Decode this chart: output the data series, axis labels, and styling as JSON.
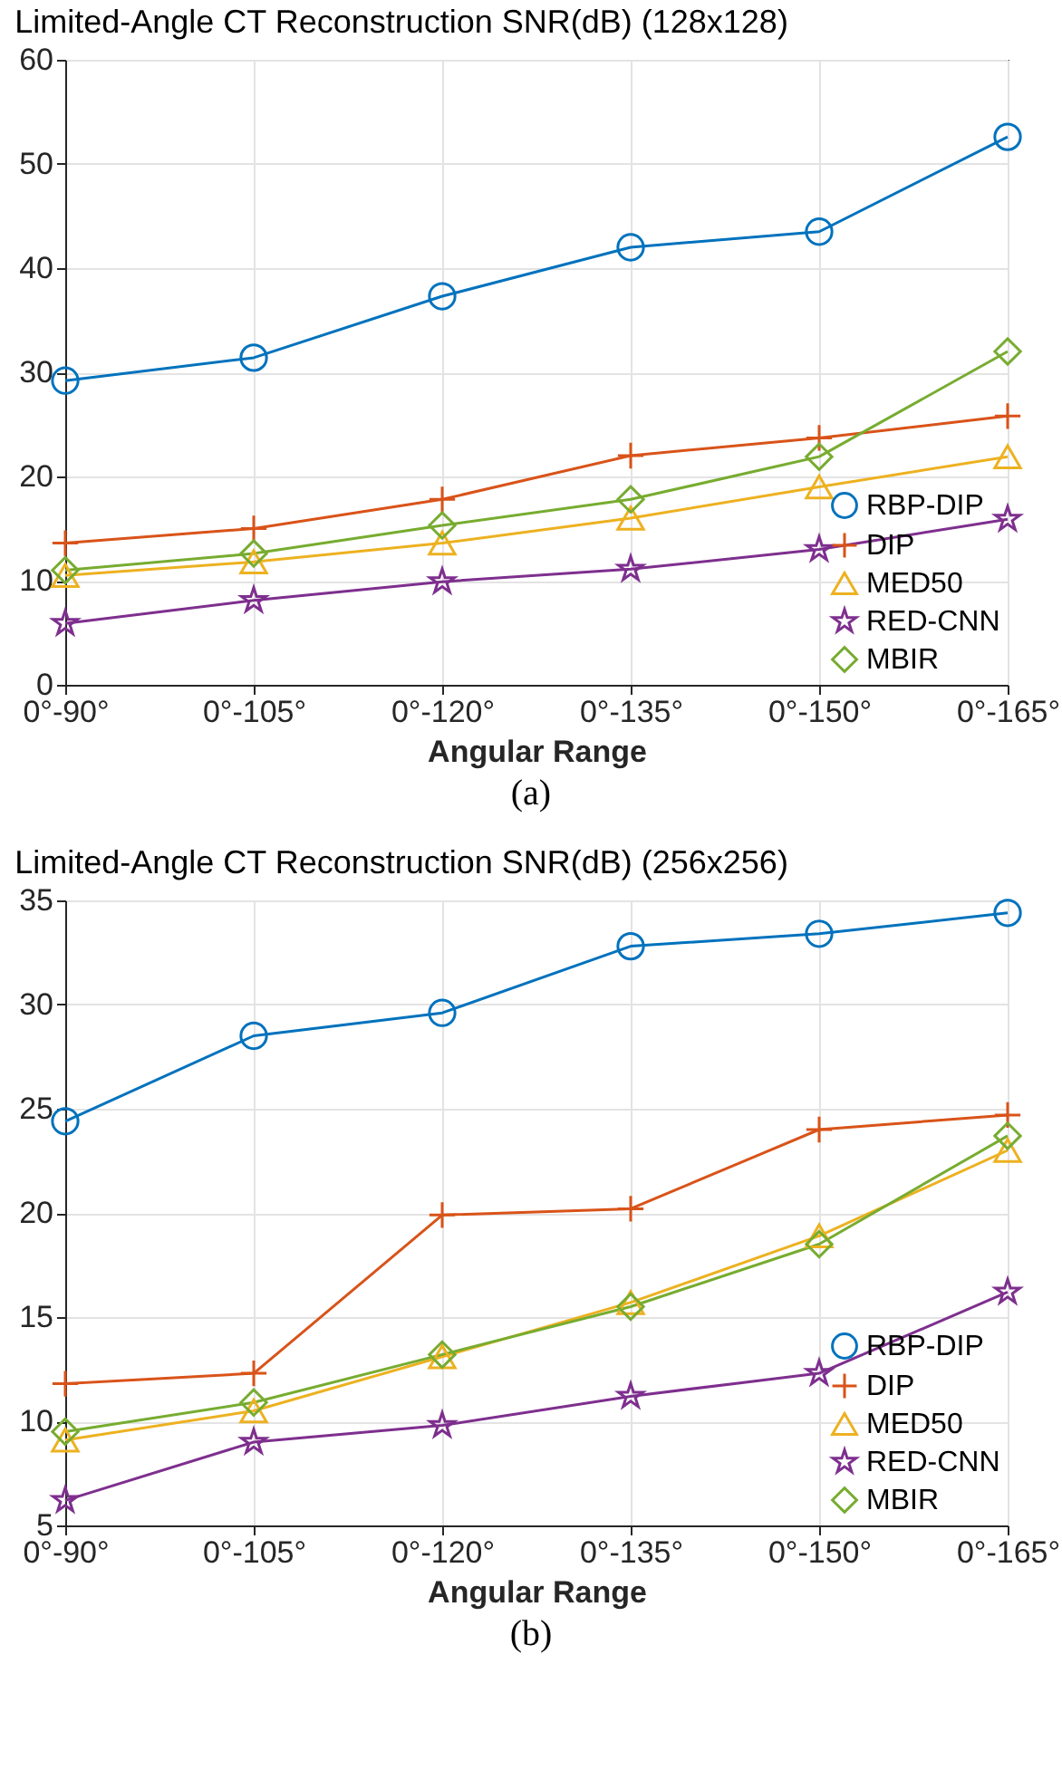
{
  "chart_data": [
    {
      "type": "line",
      "title": "Limited-Angle CT Reconstruction SNR(dB) (128x128)",
      "xlabel": "Angular Range",
      "annotations": [
        "(a)"
      ],
      "categories": [
        "0°-90°",
        "0°-105°",
        "0°-120°",
        "0°-135°",
        "0°-150°",
        "0°-165°"
      ],
      "series": [
        {
          "name": "RBP-DIP",
          "color": "#0072bd",
          "marker": "circle",
          "values": [
            29.2,
            31.4,
            37.3,
            42.0,
            43.5,
            52.6
          ]
        },
        {
          "name": "DIP",
          "color": "#d95319",
          "marker": "cross",
          "values": [
            13.6,
            15.0,
            17.8,
            22.0,
            23.7,
            25.8
          ]
        },
        {
          "name": "MED50",
          "color": "#edb120",
          "marker": "triangle",
          "values": [
            10.5,
            11.8,
            13.6,
            16.0,
            19.0,
            21.9
          ]
        },
        {
          "name": "RED-CNN",
          "color": "#7e2f8e",
          "marker": "star",
          "values": [
            5.9,
            8.1,
            9.9,
            11.1,
            13.0,
            15.9
          ]
        },
        {
          "name": "MBIR",
          "color": "#77ac30",
          "marker": "diamond",
          "values": [
            11.0,
            12.6,
            15.3,
            17.8,
            21.9,
            32.0
          ]
        }
      ],
      "ylim": [
        0,
        60
      ],
      "yticks": [
        0,
        10,
        20,
        30,
        40,
        50,
        60
      ],
      "grid": true,
      "legend": "bottom right"
    },
    {
      "type": "line",
      "title": "Limited-Angle CT Reconstruction SNR(dB) (256x256)",
      "xlabel": "Angular Range",
      "annotations": [
        "(b)"
      ],
      "categories": [
        "0°-90°",
        "0°-105°",
        "0°-120°",
        "0°-135°",
        "0°-150°",
        "0°-165°"
      ],
      "series": [
        {
          "name": "RBP-DIP",
          "color": "#0072bd",
          "marker": "circle",
          "values": [
            24.4,
            28.5,
            29.6,
            32.8,
            33.4,
            34.4
          ]
        },
        {
          "name": "DIP",
          "color": "#d95319",
          "marker": "cross",
          "values": [
            11.8,
            12.3,
            19.9,
            20.2,
            24.0,
            24.7
          ]
        },
        {
          "name": "MED50",
          "color": "#edb120",
          "marker": "triangle",
          "values": [
            9.1,
            10.5,
            13.1,
            15.7,
            18.9,
            23.0
          ]
        },
        {
          "name": "RED-CNN",
          "color": "#7e2f8e",
          "marker": "star",
          "values": [
            6.2,
            9.0,
            9.8,
            11.2,
            12.3,
            16.2
          ]
        },
        {
          "name": "MBIR",
          "color": "#77ac30",
          "marker": "diamond",
          "values": [
            9.5,
            10.9,
            13.2,
            15.5,
            18.5,
            23.7
          ]
        }
      ],
      "ylim": [
        5,
        35
      ],
      "yticks": [
        5,
        10,
        15,
        20,
        25,
        30,
        35
      ],
      "grid": true,
      "legend": "bottom right"
    }
  ]
}
